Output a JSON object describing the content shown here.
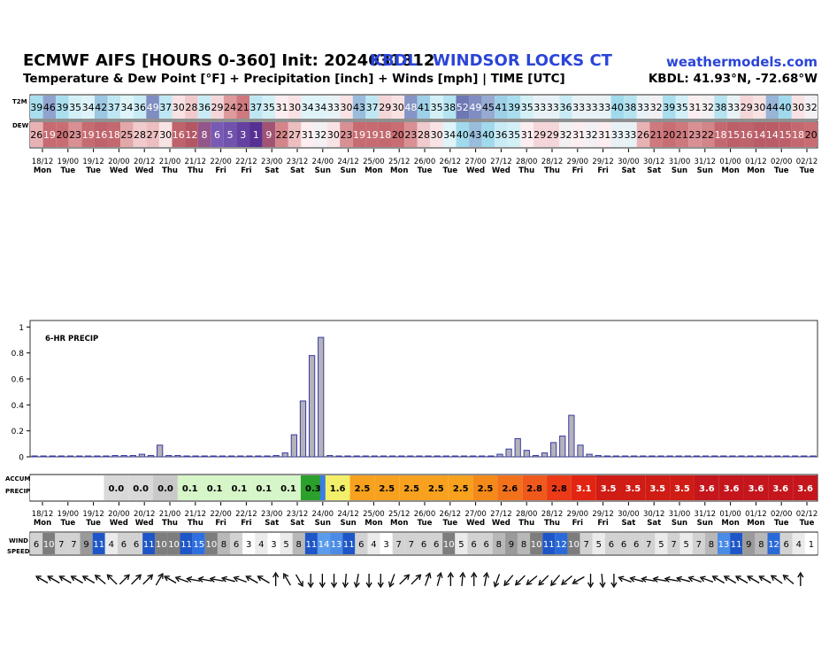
{
  "header": {
    "title": "ECMWF AIFS [HOURS 0-360] Init: 2024031812",
    "station": "KBDL",
    "place": "WINDSOR LOCKS   CT",
    "site": "weathermodels.com",
    "subtitle": "Temperature & Dew Point [°F] + Precipitation [inch] + Winds [mph] | TIME [UTC]",
    "coords": "KBDL: 41.93°N, -72.68°W"
  },
  "row_labels": {
    "t2m": "T2M",
    "dew": "DEW",
    "accum": "ACCUM",
    "precip": "PRECIP",
    "wind": "WIND",
    "speed": "SPEED"
  },
  "time_labels": [
    {
      "date": "18/12",
      "day": "Mon"
    },
    {
      "date": "19/00",
      "day": "Tue"
    },
    {
      "date": "19/12",
      "day": "Tue"
    },
    {
      "date": "20/00",
      "day": "Wed"
    },
    {
      "date": "20/12",
      "day": "Wed"
    },
    {
      "date": "21/00",
      "day": "Thu"
    },
    {
      "date": "21/12",
      "day": "Thu"
    },
    {
      "date": "22/00",
      "day": "Fri"
    },
    {
      "date": "22/12",
      "day": "Fri"
    },
    {
      "date": "23/00",
      "day": "Sat"
    },
    {
      "date": "23/12",
      "day": "Sat"
    },
    {
      "date": "24/00",
      "day": "Sun"
    },
    {
      "date": "24/12",
      "day": "Sun"
    },
    {
      "date": "25/00",
      "day": "Mon"
    },
    {
      "date": "25/12",
      "day": "Mon"
    },
    {
      "date": "26/00",
      "day": "Tue"
    },
    {
      "date": "26/12",
      "day": "Tue"
    },
    {
      "date": "27/00",
      "day": "Wed"
    },
    {
      "date": "27/12",
      "day": "Wed"
    },
    {
      "date": "28/00",
      "day": "Thu"
    },
    {
      "date": "28/12",
      "day": "Thu"
    },
    {
      "date": "29/00",
      "day": "Fri"
    },
    {
      "date": "29/12",
      "day": "Fri"
    },
    {
      "date": "30/00",
      "day": "Sat"
    },
    {
      "date": "30/12",
      "day": "Sat"
    },
    {
      "date": "31/00",
      "day": "Sun"
    },
    {
      "date": "31/12",
      "day": "Sun"
    },
    {
      "date": "01/00",
      "day": "Mon"
    },
    {
      "date": "01/12",
      "day": "Mon"
    },
    {
      "date": "02/00",
      "day": "Tue"
    },
    {
      "date": "02/12",
      "day": "Tue"
    }
  ],
  "chart_data": [
    {
      "type": "table",
      "name": "T2M",
      "values": [
        39,
        46,
        39,
        35,
        34,
        42,
        37,
        34,
        36,
        49,
        37,
        30,
        28,
        36,
        29,
        24,
        21,
        37,
        35,
        31,
        30,
        34,
        34,
        33,
        30,
        43,
        37,
        29,
        30,
        48,
        41,
        35,
        38,
        52,
        49,
        45,
        41,
        39,
        35,
        33,
        33,
        36,
        33,
        33,
        33,
        40,
        38,
        33,
        32,
        39,
        35,
        31,
        32,
        38,
        33,
        29,
        30,
        44,
        40,
        30,
        32
      ]
    },
    {
      "type": "table",
      "name": "DEW",
      "values": [
        26,
        19,
        20,
        23,
        19,
        16,
        18,
        25,
        28,
        27,
        30,
        16,
        12,
        8,
        6,
        5,
        3,
        1,
        9,
        22,
        27,
        31,
        32,
        30,
        23,
        19,
        19,
        18,
        20,
        23,
        28,
        30,
        34,
        40,
        43,
        40,
        36,
        35,
        31,
        29,
        29,
        32,
        31,
        32,
        31,
        33,
        33,
        26,
        21,
        20,
        21,
        23,
        22,
        18,
        15,
        16,
        14,
        14,
        15,
        18,
        20
      ]
    },
    {
      "type": "bar",
      "title": "6-HR PRECIP",
      "ylim": [
        0,
        1.05
      ],
      "yticks": [
        0,
        0.2,
        0.4,
        0.6,
        0.8,
        1
      ],
      "values": [
        0,
        0,
        0,
        0,
        0,
        0,
        0,
        0,
        0,
        0.01,
        0.01,
        0.01,
        0.02,
        0.01,
        0.09,
        0.01,
        0.01,
        0,
        0,
        0,
        0,
        0,
        0,
        0,
        0,
        0,
        0,
        0.01,
        0.03,
        0.17,
        0.43,
        0.78,
        0.92,
        0.01,
        0,
        0,
        0,
        0,
        0,
        0,
        0,
        0,
        0,
        0,
        0,
        0,
        0,
        0,
        0,
        0,
        0,
        0,
        0.02,
        0.06,
        0.14,
        0.05,
        0.01,
        0.03,
        0.11,
        0.16,
        0.32,
        0.09,
        0.02,
        0.01,
        0,
        0,
        0,
        0,
        0,
        0,
        0,
        0,
        0,
        0,
        0,
        0,
        0,
        0,
        0,
        0,
        0,
        0,
        0,
        0,
        0,
        0,
        0,
        0
      ]
    },
    {
      "type": "table",
      "name": "ACCUM PRECIP",
      "values": [
        "",
        "",
        "",
        "0.0",
        "0.0",
        "0.0",
        "0.1",
        "0.1",
        "0.1",
        "0.1",
        "0.1",
        "0.3",
        "1.6",
        "2.5",
        "2.5",
        "2.5",
        "2.5",
        "2.5",
        "2.5",
        "2.6",
        "2.8",
        "2.8",
        "3.1",
        "3.5",
        "3.5",
        "3.5",
        "3.5",
        "3.6",
        "3.6",
        "3.6",
        "3.6",
        "3.6"
      ]
    },
    {
      "type": "table",
      "name": "WIND SPEED",
      "values": [
        6,
        10,
        7,
        7,
        9,
        11,
        4,
        6,
        6,
        11,
        10,
        10,
        11,
        15,
        10,
        8,
        6,
        3,
        4,
        3,
        5,
        8,
        11,
        14,
        13,
        11,
        6,
        4,
        3,
        7,
        7,
        6,
        6,
        10,
        5,
        6,
        6,
        8,
        9,
        8,
        10,
        11,
        12,
        10,
        7,
        5,
        6,
        6,
        6,
        7,
        5,
        7,
        5,
        7,
        8,
        13,
        11,
        9,
        8,
        12,
        6,
        4,
        1
      ],
      "directions_deg": [
        300,
        300,
        300,
        300,
        300,
        310,
        315,
        45,
        45,
        45,
        30,
        300,
        290,
        280,
        280,
        280,
        285,
        290,
        300,
        300,
        0,
        330,
        150,
        180,
        180,
        180,
        185,
        190,
        180,
        180,
        200,
        45,
        45,
        20,
        15,
        0,
        5,
        0,
        10,
        200,
        220,
        225,
        230,
        225,
        220,
        230,
        240,
        180,
        175,
        180,
        290,
        285,
        280,
        280,
        280,
        285,
        290,
        290,
        300,
        300,
        300,
        300,
        300,
        305,
        310,
        0
      ]
    }
  ]
}
